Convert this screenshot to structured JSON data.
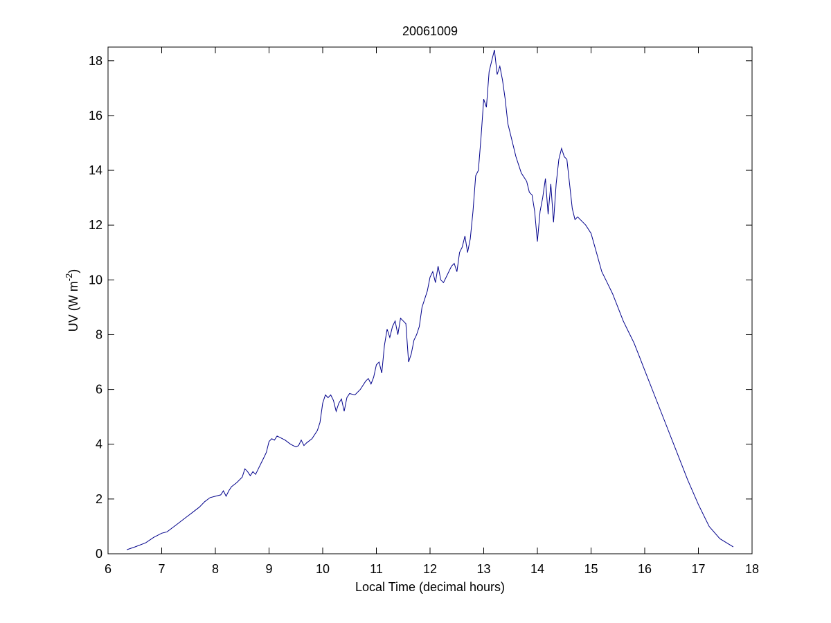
{
  "chart_data": {
    "type": "line",
    "title": "20061009",
    "xlabel": "Local Time (decimal hours)",
    "ylabel_main": "UV (W m",
    "ylabel_sup": "-2",
    "ylabel_close": ")",
    "xlim": [
      6,
      18
    ],
    "ylim": [
      0,
      18.5
    ],
    "xticks": [
      "6",
      "7",
      "8",
      "9",
      "10",
      "11",
      "12",
      "13",
      "14",
      "15",
      "16",
      "17",
      "18"
    ],
    "yticks": [
      "0",
      "2",
      "4",
      "6",
      "8",
      "10",
      "12",
      "14",
      "16",
      "18"
    ],
    "grid": false,
    "line_color": "#00008b",
    "series": [
      {
        "x": [
          6.35,
          6.5,
          6.7,
          6.85,
          7.0,
          7.1,
          7.2,
          7.3,
          7.4,
          7.5,
          7.6,
          7.7,
          7.8,
          7.9,
          8.0,
          8.1,
          8.15,
          8.2,
          8.25,
          8.3,
          8.4,
          8.5,
          8.55,
          8.6,
          8.65,
          8.7,
          8.75,
          8.8,
          8.85,
          8.9,
          8.95,
          9.0,
          9.05,
          9.1,
          9.15,
          9.2,
          9.3,
          9.4,
          9.5,
          9.55,
          9.6,
          9.65,
          9.7,
          9.8,
          9.9,
          9.95,
          10.0,
          10.05,
          10.1,
          10.15,
          10.2,
          10.25,
          10.3,
          10.35,
          10.4,
          10.45,
          10.5,
          10.6,
          10.7,
          10.8,
          10.85,
          10.9,
          10.95,
          11.0,
          11.05,
          11.1,
          11.15,
          11.2,
          11.25,
          11.3,
          11.35,
          11.4,
          11.45,
          11.5,
          11.55,
          11.6,
          11.65,
          11.7,
          11.75,
          11.8,
          11.85,
          11.9,
          11.95,
          12.0,
          12.05,
          12.1,
          12.15,
          12.2,
          12.25,
          12.3,
          12.35,
          12.4,
          12.45,
          12.5,
          12.55,
          12.6,
          12.65,
          12.7,
          12.75,
          12.8,
          12.85,
          12.9,
          12.95,
          13.0,
          13.05,
          13.1,
          13.15,
          13.2,
          13.25,
          13.3,
          13.35,
          13.4,
          13.45,
          13.5,
          13.6,
          13.7,
          13.8,
          13.85,
          13.9,
          13.95,
          14.0,
          14.05,
          14.1,
          14.15,
          14.2,
          14.25,
          14.3,
          14.35,
          14.4,
          14.45,
          14.5,
          14.55,
          14.6,
          14.65,
          14.7,
          14.75,
          14.8,
          14.85,
          14.9,
          15.0,
          15.1,
          15.2,
          15.3,
          15.4,
          15.5,
          15.6,
          15.7,
          15.8,
          15.9,
          16.0,
          16.2,
          16.4,
          16.6,
          16.8,
          17.0,
          17.2,
          17.4,
          17.65
        ],
        "y": [
          0.15,
          0.25,
          0.4,
          0.6,
          0.75,
          0.8,
          0.95,
          1.1,
          1.25,
          1.4,
          1.55,
          1.7,
          1.9,
          2.05,
          2.1,
          2.15,
          2.3,
          2.1,
          2.3,
          2.45,
          2.6,
          2.8,
          3.1,
          3.0,
          2.85,
          3.0,
          2.9,
          3.1,
          3.3,
          3.5,
          3.7,
          4.1,
          4.2,
          4.15,
          4.3,
          4.25,
          4.15,
          4.0,
          3.9,
          3.95,
          4.15,
          3.95,
          4.05,
          4.2,
          4.5,
          4.8,
          5.5,
          5.8,
          5.7,
          5.8,
          5.6,
          5.2,
          5.5,
          5.65,
          5.2,
          5.7,
          5.85,
          5.8,
          6.0,
          6.3,
          6.4,
          6.2,
          6.45,
          6.9,
          7.0,
          6.6,
          7.6,
          8.2,
          7.9,
          8.3,
          8.5,
          8.0,
          8.6,
          8.5,
          8.4,
          7.0,
          7.3,
          7.8,
          8.0,
          8.3,
          9.0,
          9.3,
          9.6,
          10.1,
          10.3,
          9.9,
          10.5,
          10.0,
          9.9,
          10.1,
          10.3,
          10.5,
          10.6,
          10.3,
          11.0,
          11.2,
          11.6,
          11.0,
          11.5,
          12.5,
          13.8,
          14.0,
          15.2,
          16.6,
          16.3,
          17.6,
          18.0,
          18.4,
          17.5,
          17.8,
          17.3,
          16.6,
          15.7,
          15.3,
          14.5,
          13.9,
          13.6,
          13.2,
          13.1,
          12.5,
          11.4,
          12.5,
          13.0,
          13.7,
          12.4,
          13.5,
          12.1,
          13.5,
          14.4,
          14.8,
          14.5,
          14.4,
          13.5,
          12.6,
          12.2,
          12.3,
          12.2,
          12.1,
          12.0,
          11.7,
          11.0,
          10.3,
          9.9,
          9.5,
          9.0,
          8.5,
          8.1,
          7.7,
          7.2,
          6.7,
          5.7,
          4.7,
          3.7,
          2.7,
          1.8,
          1.0,
          0.55,
          0.25
        ]
      }
    ]
  }
}
